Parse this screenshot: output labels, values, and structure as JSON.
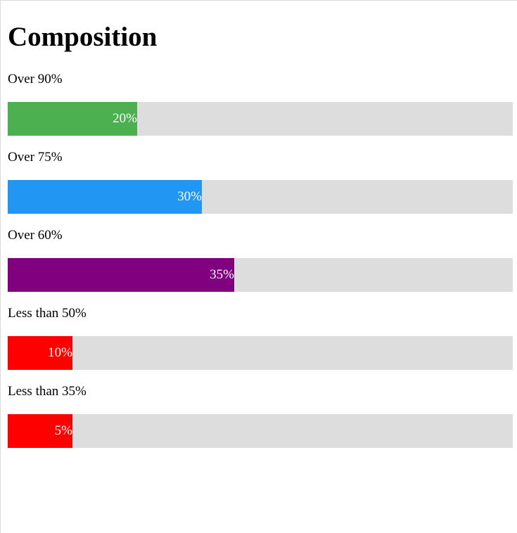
{
  "title": "Composition",
  "chart_data": {
    "type": "bar",
    "orientation": "horizontal",
    "title": "Composition",
    "categories": [
      "Over 90%",
      "Over 75%",
      "Over 60%",
      "Less than 50%",
      "Less than 35%"
    ],
    "values": [
      20,
      30,
      35,
      10,
      5
    ],
    "value_labels": [
      "20%",
      "30%",
      "35%",
      "10%",
      "5%"
    ],
    "colors": [
      "#4caf50",
      "#2196f3",
      "#800080",
      "#ff0000",
      "#ff0000"
    ],
    "track_color": "#dddddd",
    "xlim": [
      0,
      100
    ]
  }
}
